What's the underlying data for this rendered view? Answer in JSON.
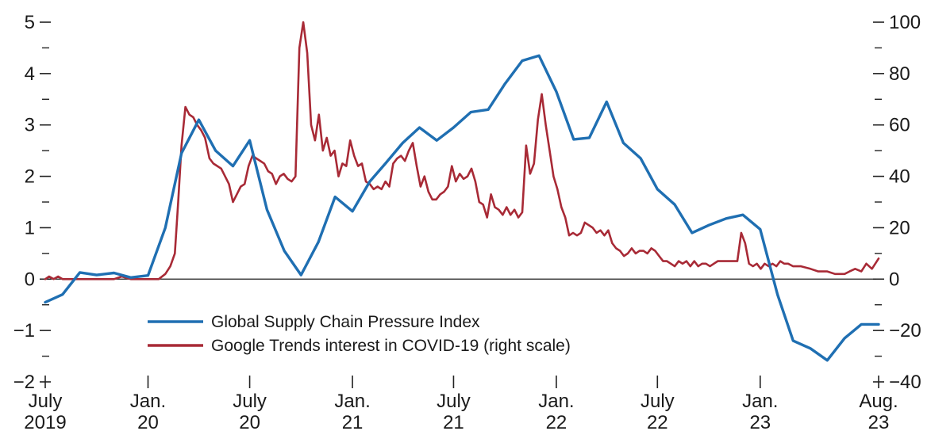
{
  "chart_data": {
    "type": "line",
    "title": "",
    "xlabel": "",
    "ylabel_left": "",
    "ylabel_right": "",
    "x_tick_labels": [
      {
        "month": "July",
        "year": "2019"
      },
      {
        "month": "Jan.",
        "year": "20"
      },
      {
        "month": "July",
        "year": "20"
      },
      {
        "month": "Jan.",
        "year": "21"
      },
      {
        "month": "July",
        "year": "21"
      },
      {
        "month": "Jan.",
        "year": "22"
      },
      {
        "month": "July",
        "year": "22"
      },
      {
        "month": "Jan.",
        "year": "23"
      },
      {
        "month": "Aug.",
        "year": "23"
      }
    ],
    "y_left": {
      "min": -2,
      "max": 5,
      "major_ticks": [
        -2,
        -1,
        0,
        1,
        2,
        3,
        4,
        5
      ],
      "minor_ticks": [
        -1.5,
        -0.5,
        0.5,
        1.5,
        2.5,
        3.5,
        4.5
      ]
    },
    "y_right": {
      "min": -40,
      "max": 100,
      "major_ticks": [
        -40,
        -20,
        0,
        20,
        40,
        60,
        80,
        100
      ],
      "minor_ticks": [
        -30,
        -10,
        10,
        30,
        50,
        70,
        90
      ]
    },
    "legend_position": "lower-left",
    "series": [
      {
        "name": "Global Supply Chain Pressure Index",
        "axis": "left",
        "color": "#1f6fb2",
        "points": [
          [
            "2019-07",
            -0.45
          ],
          [
            "2019-08",
            -0.3
          ],
          [
            "2019-09",
            0.13
          ],
          [
            "2019-10",
            0.08
          ],
          [
            "2019-11",
            0.12
          ],
          [
            "2019-12",
            0.03
          ],
          [
            "2020-01",
            0.07
          ],
          [
            "2020-02",
            1.0
          ],
          [
            "2020-03",
            2.45
          ],
          [
            "2020-04",
            3.1
          ],
          [
            "2020-05",
            2.5
          ],
          [
            "2020-06",
            2.2
          ],
          [
            "2020-07",
            2.7
          ],
          [
            "2020-08",
            1.35
          ],
          [
            "2020-09",
            0.55
          ],
          [
            "2020-10",
            0.08
          ],
          [
            "2020-11",
            0.72
          ],
          [
            "2020-12",
            1.6
          ],
          [
            "2021-01",
            1.32
          ],
          [
            "2021-02",
            1.9
          ],
          [
            "2021-03",
            2.25
          ],
          [
            "2021-04",
            2.65
          ],
          [
            "2021-05",
            2.95
          ],
          [
            "2021-06",
            2.7
          ],
          [
            "2021-07",
            2.95
          ],
          [
            "2021-08",
            3.25
          ],
          [
            "2021-09",
            3.3
          ],
          [
            "2021-10",
            3.8
          ],
          [
            "2021-11",
            4.25
          ],
          [
            "2021-12",
            4.35
          ],
          [
            "2022-01",
            3.65
          ],
          [
            "2022-02",
            2.72
          ],
          [
            "2022-03",
            2.75
          ],
          [
            "2022-04",
            3.45
          ],
          [
            "2022-05",
            2.65
          ],
          [
            "2022-06",
            2.35
          ],
          [
            "2022-07",
            1.75
          ],
          [
            "2022-08",
            1.45
          ],
          [
            "2022-09",
            0.9
          ],
          [
            "2022-10",
            1.05
          ],
          [
            "2022-11",
            1.18
          ],
          [
            "2022-12",
            1.25
          ],
          [
            "2023-01",
            0.97
          ],
          [
            "2023-02",
            -0.3
          ],
          [
            "2023-03",
            -1.2
          ],
          [
            "2023-04",
            -1.35
          ],
          [
            "2023-05",
            -1.58
          ],
          [
            "2023-06",
            -1.15
          ],
          [
            "2023-07",
            -0.88
          ],
          [
            "2023-08",
            -0.88
          ]
        ]
      },
      {
        "name": "Google Trends interest in COVID-19 (right scale)",
        "axis": "right",
        "color": "#a82a36",
        "points": [
          [
            "2019-07-01",
            0
          ],
          [
            "2019-07-08",
            1
          ],
          [
            "2019-07-16",
            0
          ],
          [
            "2019-07-24",
            1
          ],
          [
            "2019-08-01",
            0
          ],
          [
            "2019-09-01",
            0
          ],
          [
            "2019-10-01",
            0
          ],
          [
            "2019-11-01",
            0
          ],
          [
            "2019-11-15",
            1
          ],
          [
            "2019-12-01",
            0
          ],
          [
            "2020-01-01",
            0
          ],
          [
            "2020-01-20",
            0
          ],
          [
            "2020-02-01",
            2
          ],
          [
            "2020-02-10",
            5
          ],
          [
            "2020-02-18",
            10
          ],
          [
            "2020-02-24",
            30
          ],
          [
            "2020-03-01",
            52
          ],
          [
            "2020-03-08",
            67
          ],
          [
            "2020-03-15",
            64
          ],
          [
            "2020-03-22",
            63
          ],
          [
            "2020-03-29",
            60
          ],
          [
            "2020-04-05",
            58
          ],
          [
            "2020-04-12",
            55
          ],
          [
            "2020-04-20",
            47
          ],
          [
            "2020-04-27",
            45
          ],
          [
            "2020-05-04",
            44
          ],
          [
            "2020-05-11",
            43
          ],
          [
            "2020-05-18",
            40
          ],
          [
            "2020-05-25",
            37
          ],
          [
            "2020-06-01",
            30
          ],
          [
            "2020-06-08",
            33
          ],
          [
            "2020-06-15",
            36
          ],
          [
            "2020-06-22",
            37
          ],
          [
            "2020-06-29",
            44
          ],
          [
            "2020-07-06",
            48
          ],
          [
            "2020-07-13",
            47
          ],
          [
            "2020-07-20",
            46
          ],
          [
            "2020-07-27",
            45
          ],
          [
            "2020-08-03",
            42
          ],
          [
            "2020-08-10",
            41
          ],
          [
            "2020-08-17",
            37
          ],
          [
            "2020-08-24",
            40
          ],
          [
            "2020-08-31",
            41
          ],
          [
            "2020-09-07",
            39
          ],
          [
            "2020-09-14",
            38
          ],
          [
            "2020-09-21",
            40
          ],
          [
            "2020-09-28",
            90
          ],
          [
            "2020-10-05",
            100
          ],
          [
            "2020-10-12",
            88
          ],
          [
            "2020-10-19",
            60
          ],
          [
            "2020-10-26",
            54
          ],
          [
            "2020-11-02",
            64
          ],
          [
            "2020-11-09",
            50
          ],
          [
            "2020-11-16",
            55
          ],
          [
            "2020-11-23",
            48
          ],
          [
            "2020-11-30",
            50
          ],
          [
            "2020-12-07",
            40
          ],
          [
            "2020-12-14",
            45
          ],
          [
            "2020-12-21",
            44
          ],
          [
            "2020-12-28",
            54
          ],
          [
            "2021-01-04",
            48
          ],
          [
            "2021-01-11",
            44
          ],
          [
            "2021-01-18",
            45
          ],
          [
            "2021-01-25",
            38
          ],
          [
            "2021-02-01",
            37
          ],
          [
            "2021-02-08",
            35
          ],
          [
            "2021-02-15",
            36
          ],
          [
            "2021-02-22",
            35
          ],
          [
            "2021-03-01",
            38
          ],
          [
            "2021-03-08",
            36
          ],
          [
            "2021-03-15",
            45
          ],
          [
            "2021-03-22",
            47
          ],
          [
            "2021-03-29",
            48
          ],
          [
            "2021-04-05",
            46
          ],
          [
            "2021-04-12",
            50
          ],
          [
            "2021-04-19",
            53
          ],
          [
            "2021-04-26",
            44
          ],
          [
            "2021-05-03",
            36
          ],
          [
            "2021-05-10",
            40
          ],
          [
            "2021-05-17",
            34
          ],
          [
            "2021-05-24",
            31
          ],
          [
            "2021-05-31",
            31
          ],
          [
            "2021-06-07",
            33
          ],
          [
            "2021-06-14",
            34
          ],
          [
            "2021-06-21",
            36
          ],
          [
            "2021-06-28",
            44
          ],
          [
            "2021-07-05",
            38
          ],
          [
            "2021-07-12",
            41
          ],
          [
            "2021-07-19",
            39
          ],
          [
            "2021-07-26",
            40
          ],
          [
            "2021-08-02",
            43
          ],
          [
            "2021-08-09",
            38
          ],
          [
            "2021-08-16",
            30
          ],
          [
            "2021-08-23",
            29
          ],
          [
            "2021-08-30",
            24
          ],
          [
            "2021-09-06",
            33
          ],
          [
            "2021-09-13",
            28
          ],
          [
            "2021-09-20",
            27
          ],
          [
            "2021-09-27",
            25
          ],
          [
            "2021-10-04",
            28
          ],
          [
            "2021-10-11",
            25
          ],
          [
            "2021-10-18",
            27
          ],
          [
            "2021-10-25",
            24
          ],
          [
            "2021-11-01",
            26
          ],
          [
            "2021-11-08",
            52
          ],
          [
            "2021-11-15",
            41
          ],
          [
            "2021-11-22",
            45
          ],
          [
            "2021-11-29",
            62
          ],
          [
            "2021-12-06",
            72
          ],
          [
            "2021-12-13",
            60
          ],
          [
            "2021-12-20",
            50
          ],
          [
            "2021-12-27",
            40
          ],
          [
            "2022-01-03",
            35
          ],
          [
            "2022-01-10",
            28
          ],
          [
            "2022-01-17",
            24
          ],
          [
            "2022-01-24",
            17
          ],
          [
            "2022-01-31",
            18
          ],
          [
            "2022-02-07",
            17
          ],
          [
            "2022-02-14",
            18
          ],
          [
            "2022-02-21",
            22
          ],
          [
            "2022-02-28",
            21
          ],
          [
            "2022-03-07",
            20
          ],
          [
            "2022-03-14",
            18
          ],
          [
            "2022-03-21",
            19
          ],
          [
            "2022-03-28",
            17
          ],
          [
            "2022-04-04",
            19
          ],
          [
            "2022-04-11",
            14
          ],
          [
            "2022-04-18",
            12
          ],
          [
            "2022-04-25",
            11
          ],
          [
            "2022-05-02",
            9
          ],
          [
            "2022-05-09",
            10
          ],
          [
            "2022-05-16",
            12
          ],
          [
            "2022-05-23",
            10
          ],
          [
            "2022-05-30",
            11
          ],
          [
            "2022-06-06",
            11
          ],
          [
            "2022-06-13",
            10
          ],
          [
            "2022-06-20",
            12
          ],
          [
            "2022-06-27",
            11
          ],
          [
            "2022-07-04",
            9
          ],
          [
            "2022-07-11",
            7
          ],
          [
            "2022-07-18",
            7
          ],
          [
            "2022-07-25",
            6
          ],
          [
            "2022-08-01",
            5
          ],
          [
            "2022-08-08",
            7
          ],
          [
            "2022-08-15",
            6
          ],
          [
            "2022-08-22",
            7
          ],
          [
            "2022-08-29",
            5
          ],
          [
            "2022-09-05",
            7
          ],
          [
            "2022-09-12",
            5
          ],
          [
            "2022-09-19",
            6
          ],
          [
            "2022-09-26",
            6
          ],
          [
            "2022-10-03",
            5
          ],
          [
            "2022-10-10",
            6
          ],
          [
            "2022-10-17",
            7
          ],
          [
            "2022-10-24",
            7
          ],
          [
            "2022-10-31",
            7
          ],
          [
            "2022-11-07",
            7
          ],
          [
            "2022-11-14",
            7
          ],
          [
            "2022-11-21",
            7
          ],
          [
            "2022-11-28",
            18
          ],
          [
            "2022-12-05",
            14
          ],
          [
            "2022-12-12",
            6
          ],
          [
            "2022-12-19",
            5
          ],
          [
            "2022-12-26",
            6
          ],
          [
            "2023-01-02",
            4
          ],
          [
            "2023-01-09",
            6
          ],
          [
            "2023-01-16",
            5
          ],
          [
            "2023-01-23",
            6
          ],
          [
            "2023-01-30",
            5
          ],
          [
            "2023-02-06",
            7
          ],
          [
            "2023-02-13",
            6
          ],
          [
            "2023-02-20",
            6
          ],
          [
            "2023-03-01",
            5
          ],
          [
            "2023-03-15",
            5
          ],
          [
            "2023-04-01",
            4
          ],
          [
            "2023-04-15",
            3
          ],
          [
            "2023-05-01",
            3
          ],
          [
            "2023-05-15",
            2
          ],
          [
            "2023-06-01",
            2
          ],
          [
            "2023-06-10",
            3
          ],
          [
            "2023-06-20",
            4
          ],
          [
            "2023-07-01",
            3
          ],
          [
            "2023-07-10",
            6
          ],
          [
            "2023-07-20",
            4
          ],
          [
            "2023-08-01",
            8
          ]
        ]
      }
    ],
    "zero_line": true
  }
}
